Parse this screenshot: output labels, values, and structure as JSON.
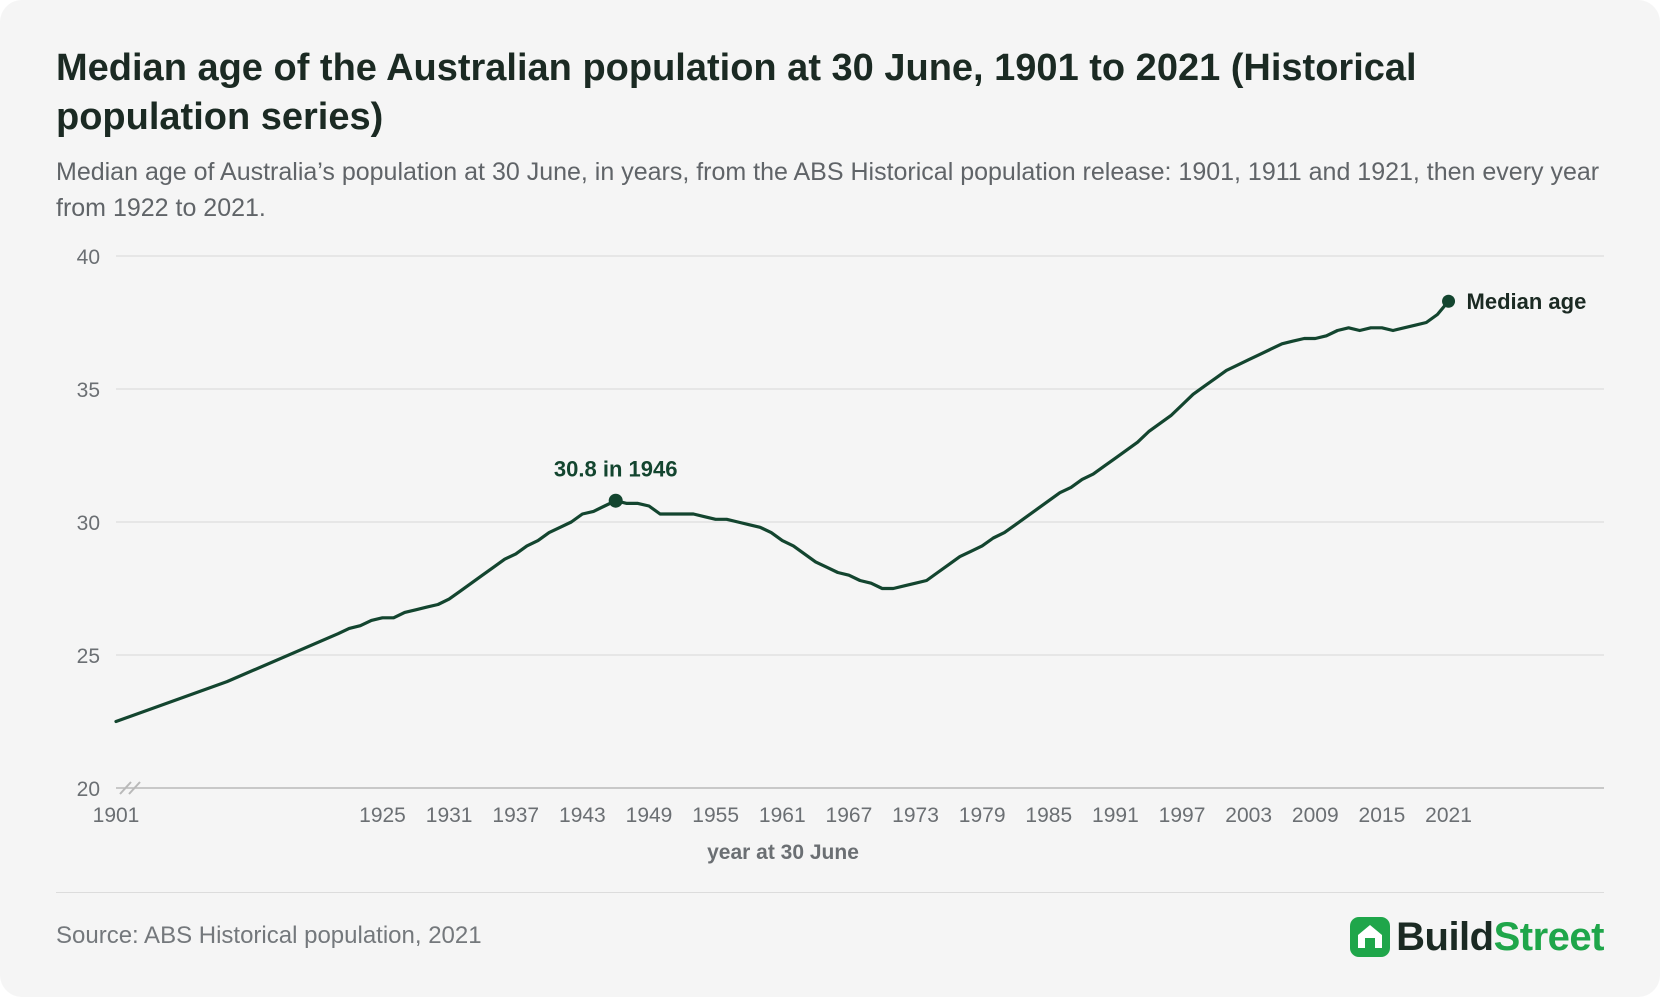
{
  "header": {
    "title": "Median age of the Australian population at 30 June, 1901 to 2021 (Historical population series)",
    "subtitle": "Median age of Australia’s population at 30 June, in years, from the ABS Historical population release: 1901, 1911 and 1921, then every year from 1922 to 2021."
  },
  "footer": {
    "source": "Source: ABS Historical population, 2021",
    "brand_part1": "Build",
    "brand_part2": "Street",
    "brand_icon": "house-icon"
  },
  "colors": {
    "line": "#13452f",
    "grid": "#dedede",
    "brand_green": "#1fa64a",
    "text_dark": "#1b2a23"
  },
  "chart_data": {
    "type": "line",
    "title": "Median age of the Australian population at 30 June, 1901 to 2021 (Historical population series)",
    "xlabel": "year at 30 June",
    "ylabel": "",
    "xlim": [
      1901,
      2035
    ],
    "ylim": [
      20,
      40
    ],
    "grid": true,
    "y_axis_break": true,
    "xticks": [
      1901,
      1925,
      1931,
      1937,
      1943,
      1949,
      1955,
      1961,
      1967,
      1973,
      1979,
      1985,
      1991,
      1997,
      2003,
      2009,
      2015,
      2021
    ],
    "yticks": [
      20,
      25,
      30,
      35,
      40
    ],
    "series": [
      {
        "name": "Median age",
        "x": [
          1901,
          1911,
          1921,
          1922,
          1923,
          1924,
          1925,
          1926,
          1927,
          1928,
          1929,
          1930,
          1931,
          1932,
          1933,
          1934,
          1935,
          1936,
          1937,
          1938,
          1939,
          1940,
          1941,
          1942,
          1943,
          1944,
          1945,
          1946,
          1947,
          1948,
          1949,
          1950,
          1951,
          1952,
          1953,
          1954,
          1955,
          1956,
          1957,
          1958,
          1959,
          1960,
          1961,
          1962,
          1963,
          1964,
          1965,
          1966,
          1967,
          1968,
          1969,
          1970,
          1971,
          1972,
          1973,
          1974,
          1975,
          1976,
          1977,
          1978,
          1979,
          1980,
          1981,
          1982,
          1983,
          1984,
          1985,
          1986,
          1987,
          1988,
          1989,
          1990,
          1991,
          1992,
          1993,
          1994,
          1995,
          1996,
          1997,
          1998,
          1999,
          2000,
          2001,
          2002,
          2003,
          2004,
          2005,
          2006,
          2007,
          2008,
          2009,
          2010,
          2011,
          2012,
          2013,
          2014,
          2015,
          2016,
          2017,
          2018,
          2019,
          2020,
          2021
        ],
        "values": [
          22.5,
          24.0,
          25.8,
          26.0,
          26.1,
          26.3,
          26.4,
          26.4,
          26.6,
          26.7,
          26.8,
          26.9,
          27.1,
          27.4,
          27.7,
          28.0,
          28.3,
          28.6,
          28.8,
          29.1,
          29.3,
          29.6,
          29.8,
          30.0,
          30.3,
          30.4,
          30.6,
          30.8,
          30.7,
          30.7,
          30.6,
          30.3,
          30.3,
          30.3,
          30.3,
          30.2,
          30.1,
          30.1,
          30.0,
          29.9,
          29.8,
          29.6,
          29.3,
          29.1,
          28.8,
          28.5,
          28.3,
          28.1,
          28.0,
          27.8,
          27.7,
          27.5,
          27.5,
          27.6,
          27.7,
          27.8,
          28.1,
          28.4,
          28.7,
          28.9,
          29.1,
          29.4,
          29.6,
          29.9,
          30.2,
          30.5,
          30.8,
          31.1,
          31.3,
          31.6,
          31.8,
          32.1,
          32.4,
          32.7,
          33.0,
          33.4,
          33.7,
          34.0,
          34.4,
          34.8,
          35.1,
          35.4,
          35.7,
          35.9,
          36.1,
          36.3,
          36.5,
          36.7,
          36.8,
          36.9,
          36.9,
          37.0,
          37.2,
          37.3,
          37.2,
          37.3,
          37.3,
          37.2,
          37.3,
          37.4,
          37.5,
          37.8,
          38.3
        ]
      }
    ],
    "annotations": [
      {
        "x": 1946,
        "y": 30.8,
        "text": "30.8 in 1946"
      }
    ],
    "end_label": {
      "x": 2021,
      "y": 38.3,
      "text": "Median age"
    }
  }
}
